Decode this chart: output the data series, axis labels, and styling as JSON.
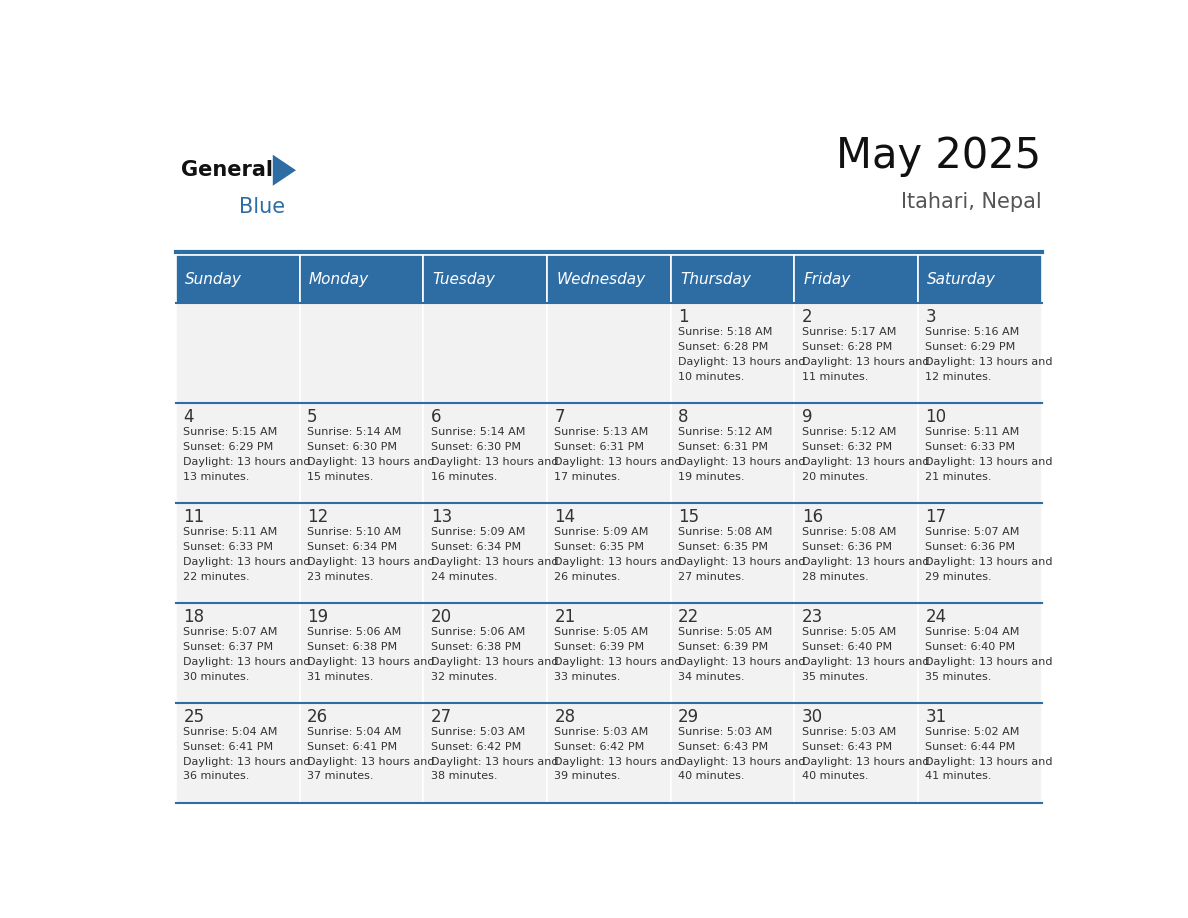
{
  "title": "May 2025",
  "subtitle": "Itahari, Nepal",
  "header_color": "#2E6DA4",
  "header_text_color": "#FFFFFF",
  "cell_bg_even": "#F2F2F2",
  "cell_bg_odd": "#FFFFFF",
  "text_color": "#333333",
  "line_color": "#2E6DA4",
  "days_of_week": [
    "Sunday",
    "Monday",
    "Tuesday",
    "Wednesday",
    "Thursday",
    "Friday",
    "Saturday"
  ],
  "calendar": [
    [
      {
        "day": "",
        "sunrise": "",
        "sunset": "",
        "daylight": ""
      },
      {
        "day": "",
        "sunrise": "",
        "sunset": "",
        "daylight": ""
      },
      {
        "day": "",
        "sunrise": "",
        "sunset": "",
        "daylight": ""
      },
      {
        "day": "",
        "sunrise": "",
        "sunset": "",
        "daylight": ""
      },
      {
        "day": "1",
        "sunrise": "5:18 AM",
        "sunset": "6:28 PM",
        "daylight": "13 hours and 10 minutes."
      },
      {
        "day": "2",
        "sunrise": "5:17 AM",
        "sunset": "6:28 PM",
        "daylight": "13 hours and 11 minutes."
      },
      {
        "day": "3",
        "sunrise": "5:16 AM",
        "sunset": "6:29 PM",
        "daylight": "13 hours and 12 minutes."
      }
    ],
    [
      {
        "day": "4",
        "sunrise": "5:15 AM",
        "sunset": "6:29 PM",
        "daylight": "13 hours and 13 minutes."
      },
      {
        "day": "5",
        "sunrise": "5:14 AM",
        "sunset": "6:30 PM",
        "daylight": "13 hours and 15 minutes."
      },
      {
        "day": "6",
        "sunrise": "5:14 AM",
        "sunset": "6:30 PM",
        "daylight": "13 hours and 16 minutes."
      },
      {
        "day": "7",
        "sunrise": "5:13 AM",
        "sunset": "6:31 PM",
        "daylight": "13 hours and 17 minutes."
      },
      {
        "day": "8",
        "sunrise": "5:12 AM",
        "sunset": "6:31 PM",
        "daylight": "13 hours and 19 minutes."
      },
      {
        "day": "9",
        "sunrise": "5:12 AM",
        "sunset": "6:32 PM",
        "daylight": "13 hours and 20 minutes."
      },
      {
        "day": "10",
        "sunrise": "5:11 AM",
        "sunset": "6:33 PM",
        "daylight": "13 hours and 21 minutes."
      }
    ],
    [
      {
        "day": "11",
        "sunrise": "5:11 AM",
        "sunset": "6:33 PM",
        "daylight": "13 hours and 22 minutes."
      },
      {
        "day": "12",
        "sunrise": "5:10 AM",
        "sunset": "6:34 PM",
        "daylight": "13 hours and 23 minutes."
      },
      {
        "day": "13",
        "sunrise": "5:09 AM",
        "sunset": "6:34 PM",
        "daylight": "13 hours and 24 minutes."
      },
      {
        "day": "14",
        "sunrise": "5:09 AM",
        "sunset": "6:35 PM",
        "daylight": "13 hours and 26 minutes."
      },
      {
        "day": "15",
        "sunrise": "5:08 AM",
        "sunset": "6:35 PM",
        "daylight": "13 hours and 27 minutes."
      },
      {
        "day": "16",
        "sunrise": "5:08 AM",
        "sunset": "6:36 PM",
        "daylight": "13 hours and 28 minutes."
      },
      {
        "day": "17",
        "sunrise": "5:07 AM",
        "sunset": "6:36 PM",
        "daylight": "13 hours and 29 minutes."
      }
    ],
    [
      {
        "day": "18",
        "sunrise": "5:07 AM",
        "sunset": "6:37 PM",
        "daylight": "13 hours and 30 minutes."
      },
      {
        "day": "19",
        "sunrise": "5:06 AM",
        "sunset": "6:38 PM",
        "daylight": "13 hours and 31 minutes."
      },
      {
        "day": "20",
        "sunrise": "5:06 AM",
        "sunset": "6:38 PM",
        "daylight": "13 hours and 32 minutes."
      },
      {
        "day": "21",
        "sunrise": "5:05 AM",
        "sunset": "6:39 PM",
        "daylight": "13 hours and 33 minutes."
      },
      {
        "day": "22",
        "sunrise": "5:05 AM",
        "sunset": "6:39 PM",
        "daylight": "13 hours and 34 minutes."
      },
      {
        "day": "23",
        "sunrise": "5:05 AM",
        "sunset": "6:40 PM",
        "daylight": "13 hours and 35 minutes."
      },
      {
        "day": "24",
        "sunrise": "5:04 AM",
        "sunset": "6:40 PM",
        "daylight": "13 hours and 35 minutes."
      }
    ],
    [
      {
        "day": "25",
        "sunrise": "5:04 AM",
        "sunset": "6:41 PM",
        "daylight": "13 hours and 36 minutes."
      },
      {
        "day": "26",
        "sunrise": "5:04 AM",
        "sunset": "6:41 PM",
        "daylight": "13 hours and 37 minutes."
      },
      {
        "day": "27",
        "sunrise": "5:03 AM",
        "sunset": "6:42 PM",
        "daylight": "13 hours and 38 minutes."
      },
      {
        "day": "28",
        "sunrise": "5:03 AM",
        "sunset": "6:42 PM",
        "daylight": "13 hours and 39 minutes."
      },
      {
        "day": "29",
        "sunrise": "5:03 AM",
        "sunset": "6:43 PM",
        "daylight": "13 hours and 40 minutes."
      },
      {
        "day": "30",
        "sunrise": "5:03 AM",
        "sunset": "6:43 PM",
        "daylight": "13 hours and 40 minutes."
      },
      {
        "day": "31",
        "sunrise": "5:02 AM",
        "sunset": "6:44 PM",
        "daylight": "13 hours and 41 minutes."
      }
    ]
  ]
}
